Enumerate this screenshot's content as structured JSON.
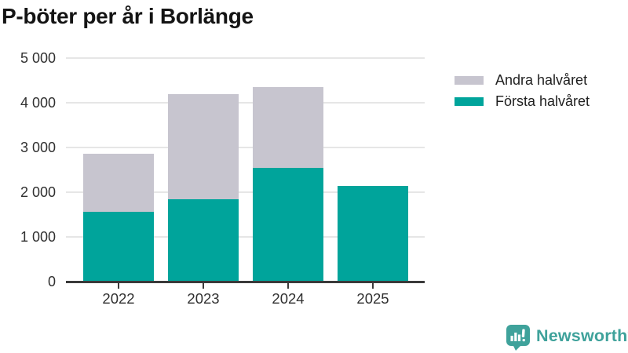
{
  "header": {
    "title": "P-böter per år i Borlänge"
  },
  "chart_data": {
    "type": "bar",
    "stacked": true,
    "title": "P-böter per år i Borlänge",
    "categories": [
      "2022",
      "2023",
      "2024",
      "2025"
    ],
    "series": [
      {
        "name": "Första halvåret",
        "color": "#00A49B",
        "values": [
          1560,
          1850,
          2550,
          2140
        ]
      },
      {
        "name": "Andra halvåret",
        "color": "#C7C5CF",
        "values": [
          1300,
          2340,
          1800,
          0
        ]
      }
    ],
    "ylim": [
      0,
      5000
    ],
    "yticks": [
      {
        "value": 0,
        "label": "0"
      },
      {
        "value": 1000,
        "label": "1 000"
      },
      {
        "value": 2000,
        "label": "2 000"
      },
      {
        "value": 3000,
        "label": "3 000"
      },
      {
        "value": 4000,
        "label": "4 000"
      },
      {
        "value": 5000,
        "label": "5 000"
      }
    ],
    "grid": "horizontal",
    "legend_position": "top-right"
  },
  "legend": {
    "items": [
      {
        "label": "Andra halvåret",
        "color": "#C7C5CF"
      },
      {
        "label": "Första halvåret",
        "color": "#00A49B"
      }
    ]
  },
  "branding": {
    "name": "Newsworthy",
    "color": "#3FA29B",
    "icon": "bar-chart-speech-bubble-icon"
  },
  "colors": {
    "axis": "#3A3A3A",
    "grid": "#E6E6E6",
    "tick_text": "#303030",
    "title_text": "#141414"
  }
}
